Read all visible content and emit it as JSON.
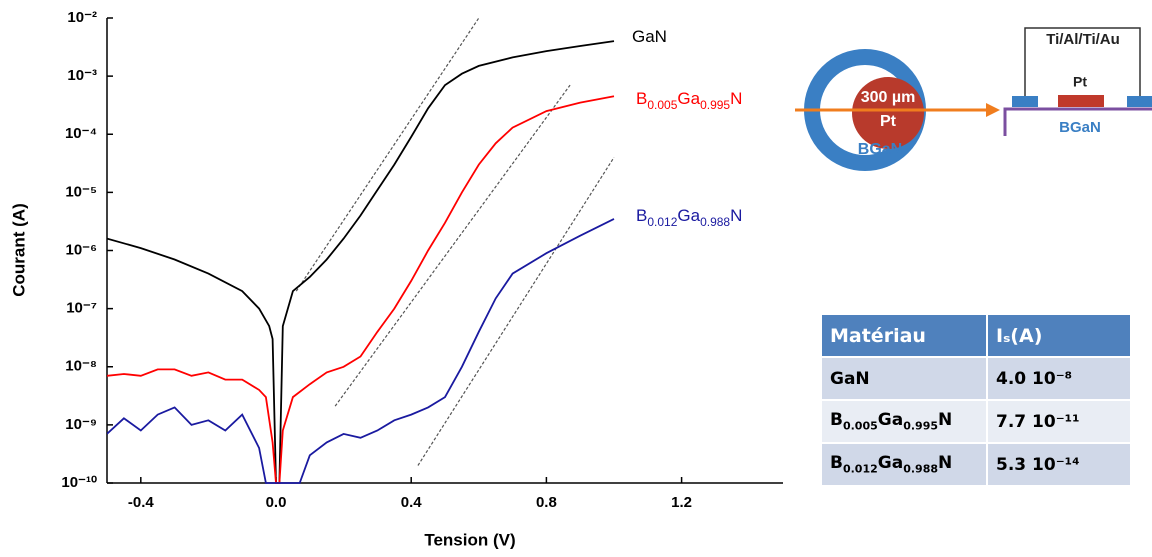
{
  "chart_data": {
    "type": "line",
    "xlabel": "Tension (V)",
    "ylabel": "Courant (A)",
    "xlim": [
      -0.5,
      1.5
    ],
    "ylim": [
      1e-10,
      0.01
    ],
    "log_y": true,
    "xticks": [
      {
        "value": -0.4,
        "label": "-0.4"
      },
      {
        "value": 0,
        "label": "0.0"
      },
      {
        "value": 0.4,
        "label": "0.4"
      },
      {
        "value": 0.8,
        "label": "0.8"
      },
      {
        "value": 1.2,
        "label": "1.2"
      }
    ],
    "yticks": [
      {
        "value": 1e-10,
        "label": "10⁻¹⁰"
      },
      {
        "value": 1e-09,
        "label": "10⁻⁹"
      },
      {
        "value": 1e-08,
        "label": "10⁻⁸"
      },
      {
        "value": 1e-07,
        "label": "10⁻⁷"
      },
      {
        "value": 1e-06,
        "label": "10⁻⁶"
      },
      {
        "value": 1e-05,
        "label": "10⁻⁵"
      },
      {
        "value": 0.0001,
        "label": "10⁻⁴"
      },
      {
        "value": 0.001,
        "label": "10⁻³"
      },
      {
        "value": 0.01,
        "label": "10⁻²"
      }
    ],
    "series": [
      {
        "name": "GaN",
        "color": "#000000",
        "x": [
          -0.5,
          -0.4,
          -0.3,
          -0.2,
          -0.1,
          -0.05,
          -0.02,
          -0.01,
          0,
          0.01,
          0.02,
          0.05,
          0.1,
          0.15,
          0.2,
          0.25,
          0.3,
          0.35,
          0.4,
          0.45,
          0.5,
          0.55,
          0.6,
          0.7,
          0.8,
          0.9,
          1.0
        ],
        "values": [
          1.6e-06,
          1.1e-06,
          7e-07,
          4e-07,
          2e-07,
          1e-07,
          5e-08,
          3e-08,
          1e-10,
          1e-10,
          5e-08,
          2e-07,
          3.5e-07,
          7e-07,
          1.6e-06,
          4e-06,
          1.1e-05,
          3e-05,
          9e-05,
          0.00028,
          0.0007,
          0.0011,
          0.0015,
          0.0021,
          0.0027,
          0.0033,
          0.004
        ]
      },
      {
        "name": "B0.005Ga0.995N",
        "color": "#ff0000",
        "x": [
          -0.5,
          -0.45,
          -0.4,
          -0.35,
          -0.3,
          -0.25,
          -0.2,
          -0.15,
          -0.1,
          -0.05,
          -0.03,
          -0.01,
          0,
          0.01,
          0.02,
          0.05,
          0.1,
          0.15,
          0.2,
          0.25,
          0.3,
          0.35,
          0.4,
          0.45,
          0.5,
          0.55,
          0.6,
          0.65,
          0.7,
          0.8,
          0.9,
          1.0
        ],
        "values": [
          7e-09,
          7.5e-09,
          7e-09,
          9e-09,
          9e-09,
          7e-09,
          8e-09,
          6e-09,
          6e-09,
          4e-09,
          3e-09,
          5e-10,
          1e-10,
          1e-10,
          8e-10,
          3e-09,
          5e-09,
          8e-09,
          1e-08,
          1.5e-08,
          4e-08,
          1e-07,
          3e-07,
          1e-06,
          3e-06,
          1e-05,
          3e-05,
          7e-05,
          0.00013,
          0.00025,
          0.00035,
          0.00045
        ]
      },
      {
        "name": "B0.012Ga0.988N",
        "color": "#1a1aa0",
        "x": [
          -0.5,
          -0.45,
          -0.4,
          -0.35,
          -0.3,
          -0.25,
          -0.2,
          -0.15,
          -0.1,
          -0.05,
          -0.03,
          0.07,
          0.1,
          0.15,
          0.2,
          0.25,
          0.3,
          0.35,
          0.4,
          0.45,
          0.5,
          0.55,
          0.6,
          0.65,
          0.7,
          0.8,
          0.9,
          1.0
        ],
        "values": [
          7e-10,
          1.3e-09,
          8e-10,
          1.5e-09,
          2e-09,
          1e-09,
          1.2e-09,
          8e-10,
          1.5e-09,
          4e-10,
          1e-10,
          1e-10,
          3e-10,
          5e-10,
          7e-10,
          6e-10,
          8e-10,
          1.2e-09,
          1.5e-09,
          2e-09,
          3e-09,
          1e-08,
          4e-08,
          1.5e-07,
          4e-07,
          9e-07,
          1.8e-06,
          3.5e-06
        ]
      }
    ],
    "fit_lines": [
      {
        "x": [
          0.06,
          0.6
        ],
        "values": [
          2e-07,
          0.01
        ]
      },
      {
        "x": [
          0.175,
          0.87
        ],
        "values": [
          2.1e-09,
          0.0007
        ]
      },
      {
        "x": [
          0.42,
          1.0
        ],
        "values": [
          2e-10,
          4e-05
        ]
      }
    ]
  },
  "diagram": {
    "size": "300 µm",
    "contact": "Pt",
    "layer": "BGaN",
    "stack": "Ti/Al/Ti/Au",
    "section_contact": "Pt",
    "section_layer": "BGaN"
  },
  "table": {
    "header": [
      "Matériau",
      "Iₛ(A)"
    ],
    "rows": [
      [
        "GaN",
        "4.0 10⁻⁸"
      ],
      [
        "B0.005Ga0.995N",
        "7.7 10⁻¹¹"
      ],
      [
        "B0.012Ga0.988N",
        "5.3 10⁻¹⁴"
      ]
    ]
  }
}
